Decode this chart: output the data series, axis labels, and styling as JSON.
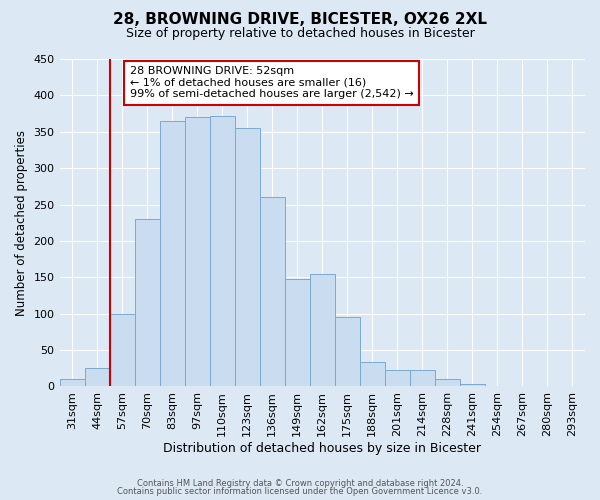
{
  "title_line1": "28, BROWNING DRIVE, BICESTER, OX26 2XL",
  "title_line2": "Size of property relative to detached houses in Bicester",
  "xlabel": "Distribution of detached houses by size in Bicester",
  "ylabel": "Number of detached properties",
  "bin_labels": [
    "31sqm",
    "44sqm",
    "57sqm",
    "70sqm",
    "83sqm",
    "97sqm",
    "110sqm",
    "123sqm",
    "136sqm",
    "149sqm",
    "162sqm",
    "175sqm",
    "188sqm",
    "201sqm",
    "214sqm",
    "228sqm",
    "241sqm",
    "254sqm",
    "267sqm",
    "280sqm",
    "293sqm"
  ],
  "bar_values": [
    10,
    25,
    100,
    230,
    365,
    370,
    372,
    355,
    260,
    148,
    155,
    95,
    33,
    22,
    22,
    10,
    3,
    1,
    0,
    0,
    1
  ],
  "bar_color": "#c9dcf0",
  "bar_edge_color": "#7aaad0",
  "vline_x": 2,
  "vline_color": "#cc0000",
  "annotation_text": "28 BROWNING DRIVE: 52sqm\n← 1% of detached houses are smaller (16)\n99% of semi-detached houses are larger (2,542) →",
  "annotation_box_color": "#ffffff",
  "annotation_box_edge_color": "#cc0000",
  "ylim": [
    0,
    450
  ],
  "yticks": [
    0,
    50,
    100,
    150,
    200,
    250,
    300,
    350,
    400,
    450
  ],
  "background_color": "#dce9f5",
  "plot_bg_color": "#dce9f5",
  "footer_line1": "Contains HM Land Registry data © Crown copyright and database right 2024.",
  "footer_line2": "Contains public sector information licensed under the Open Government Licence v3.0."
}
